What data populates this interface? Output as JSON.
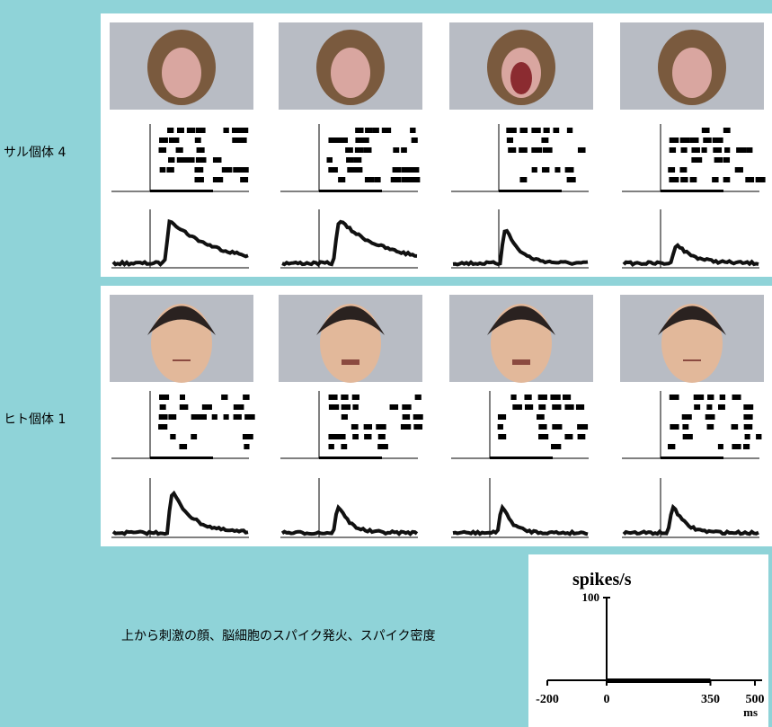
{
  "rows": [
    {
      "label": "サル個体 4"
    },
    {
      "label": "ヒト個体 1"
    }
  ],
  "caption": "上から刺激の顔、脳細胞のスパイク発火、スパイク密度",
  "scale": {
    "ylabel": "spikes/s",
    "yticks": [
      100
    ],
    "xticks": [
      -200,
      0,
      350,
      500
    ],
    "xunit": "ms"
  }
}
